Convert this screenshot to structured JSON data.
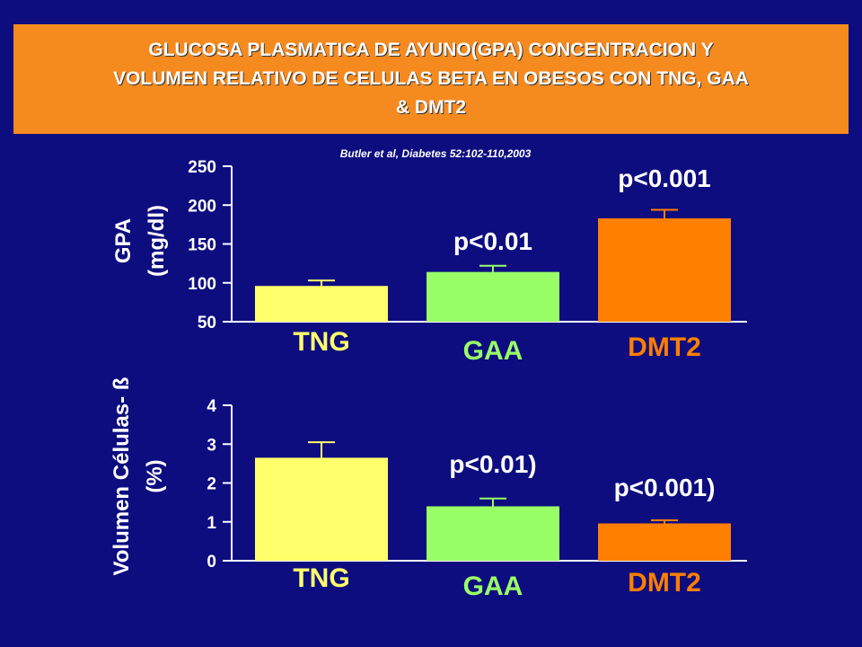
{
  "title": "GLUCOSA PLASMATICA DE AYUNO(GPA) CONCENTRACION Y VOLUMEN RELATIVO DE CELULAS BETA EN OBESOS CON TNG, GAA & DMT2",
  "title_lines": [
    "GLUCOSA PLASMATICA DE AYUNO(GPA) CONCENTRACION Y",
    "VOLUMEN RELATIVO DE CELULAS BETA EN OBESOS CON TNG, GAA",
    "& DMT2"
  ],
  "citation": "Butler et al, Diabetes 52:102-110,2003",
  "colors": {
    "background": "#0d0d80",
    "title_box": "#f58a1f",
    "TNG": "#ffff6b",
    "GAA": "#99ff66",
    "DMT2": "#ff7f00"
  },
  "chart_data": [
    {
      "type": "bar",
      "categories": [
        "TNG",
        "GAA",
        "DMT2"
      ],
      "values": [
        96,
        114,
        183
      ],
      "errors": [
        7,
        8,
        11
      ],
      "ylabel_lines": [
        "GPA",
        "(mg/dl)"
      ],
      "ylim": [
        50,
        250
      ],
      "yticks": [
        50,
        100,
        150,
        200,
        250
      ],
      "annotations": [
        "",
        "p<0.01",
        "p<0.001"
      ],
      "grid": false
    },
    {
      "type": "bar",
      "categories": [
        "TNG",
        "GAA",
        "DMT2"
      ],
      "values": [
        2.65,
        1.4,
        0.96
      ],
      "errors": [
        0.4,
        0.2,
        0.08
      ],
      "ylabel_lines": [
        "Volumen Células- ß",
        "(%)"
      ],
      "ylim": [
        0,
        4
      ],
      "yticks": [
        0,
        1,
        2,
        3,
        4
      ],
      "annotations": [
        "",
        "p<0.01)",
        "p<0.001)"
      ],
      "grid": false
    }
  ]
}
